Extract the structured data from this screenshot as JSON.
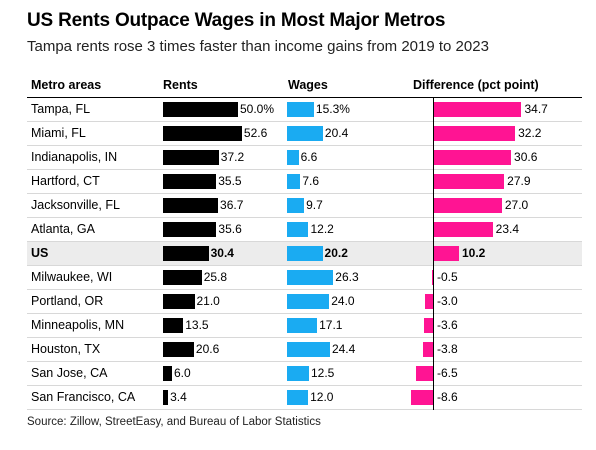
{
  "title": "US Rents Outpace Wages in Most Major Metros",
  "subtitle": "Tampa rents rose 3 times faster than income gains from 2019 to 2023",
  "source": "Source: Zillow, StreetEasy, and Bureau of Labor Statistics",
  "colors": {
    "rents": "#000000",
    "wages": "#1aabf2",
    "difference": "#ff1493",
    "highlight_row": "#ececec"
  },
  "chart_data": {
    "type": "table",
    "columns": [
      "Metro areas",
      "Rents",
      "Wages",
      "Difference (pct point)"
    ],
    "rows": [
      {
        "metro": "Tampa, FL",
        "rents": 50.0,
        "rents_label": "50.0%",
        "wages": 15.3,
        "wages_label": "15.3%",
        "diff": 34.7,
        "diff_label": "34.7"
      },
      {
        "metro": "Miami, FL",
        "rents": 52.6,
        "rents_label": "52.6",
        "wages": 20.4,
        "wages_label": "20.4",
        "diff": 32.2,
        "diff_label": "32.2"
      },
      {
        "metro": "Indianapolis, IN",
        "rents": 37.2,
        "rents_label": "37.2",
        "wages": 6.6,
        "wages_label": "6.6",
        "diff": 30.6,
        "diff_label": "30.6"
      },
      {
        "metro": "Hartford, CT",
        "rents": 35.5,
        "rents_label": "35.5",
        "wages": 7.6,
        "wages_label": "7.6",
        "diff": 27.9,
        "diff_label": "27.9"
      },
      {
        "metro": "Jacksonville, FL",
        "rents": 36.7,
        "rents_label": "36.7",
        "wages": 9.7,
        "wages_label": "9.7",
        "diff": 27.0,
        "diff_label": "27.0"
      },
      {
        "metro": "Atlanta, GA",
        "rents": 35.6,
        "rents_label": "35.6",
        "wages": 12.2,
        "wages_label": "12.2",
        "diff": 23.4,
        "diff_label": "23.4"
      },
      {
        "metro": "US",
        "rents": 30.4,
        "rents_label": "30.4",
        "wages": 20.2,
        "wages_label": "20.2",
        "diff": 10.2,
        "diff_label": "10.2",
        "highlight": true
      },
      {
        "metro": "Milwaukee, WI",
        "rents": 25.8,
        "rents_label": "25.8",
        "wages": 26.3,
        "wages_label": "26.3",
        "diff": -0.5,
        "diff_label": "-0.5"
      },
      {
        "metro": "Portland, OR",
        "rents": 21.0,
        "rents_label": "21.0",
        "wages": 24.0,
        "wages_label": "24.0",
        "diff": -3.0,
        "diff_label": "-3.0"
      },
      {
        "metro": "Minneapolis, MN",
        "rents": 13.5,
        "rents_label": "13.5",
        "wages": 17.1,
        "wages_label": "17.1",
        "diff": -3.6,
        "diff_label": "-3.6"
      },
      {
        "metro": "Houston, TX",
        "rents": 20.6,
        "rents_label": "20.6",
        "wages": 24.4,
        "wages_label": "24.4",
        "diff": -3.8,
        "diff_label": "-3.8"
      },
      {
        "metro": "San Jose, CA",
        "rents": 6.0,
        "rents_label": "6.0",
        "wages": 12.5,
        "wages_label": "12.5",
        "diff": -6.5,
        "diff_label": "-6.5"
      },
      {
        "metro": "San Francisco, CA",
        "rents": 3.4,
        "rents_label": "3.4",
        "wages": 12.0,
        "wages_label": "12.0",
        "diff": -8.6,
        "diff_label": "-8.6"
      }
    ]
  }
}
